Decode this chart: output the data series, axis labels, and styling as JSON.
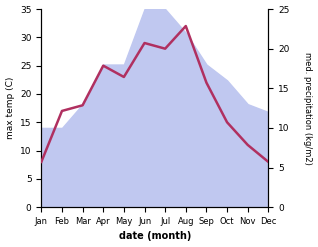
{
  "months": [
    "Jan",
    "Feb",
    "Mar",
    "Apr",
    "May",
    "Jun",
    "Jul",
    "Aug",
    "Sep",
    "Oct",
    "Nov",
    "Dec"
  ],
  "temperature": [
    8,
    17,
    18,
    25,
    23,
    29,
    28,
    32,
    22,
    15,
    11,
    8
  ],
  "precipitation": [
    10,
    10,
    13,
    18,
    18,
    25,
    25,
    22,
    18,
    16,
    13,
    12
  ],
  "temp_color": "#b03060",
  "precip_color_fill": "#c0c8f0",
  "temp_ylim": [
    0,
    35
  ],
  "precip_ylim": [
    0,
    25
  ],
  "temp_yticks": [
    0,
    5,
    10,
    15,
    20,
    25,
    30,
    35
  ],
  "precip_yticks": [
    0,
    5,
    10,
    15,
    20,
    25
  ],
  "xlabel": "date (month)",
  "ylabel_left": "max temp (C)",
  "ylabel_right": "med. precipitation (kg/m2)",
  "figsize": [
    3.18,
    2.47
  ],
  "dpi": 100
}
